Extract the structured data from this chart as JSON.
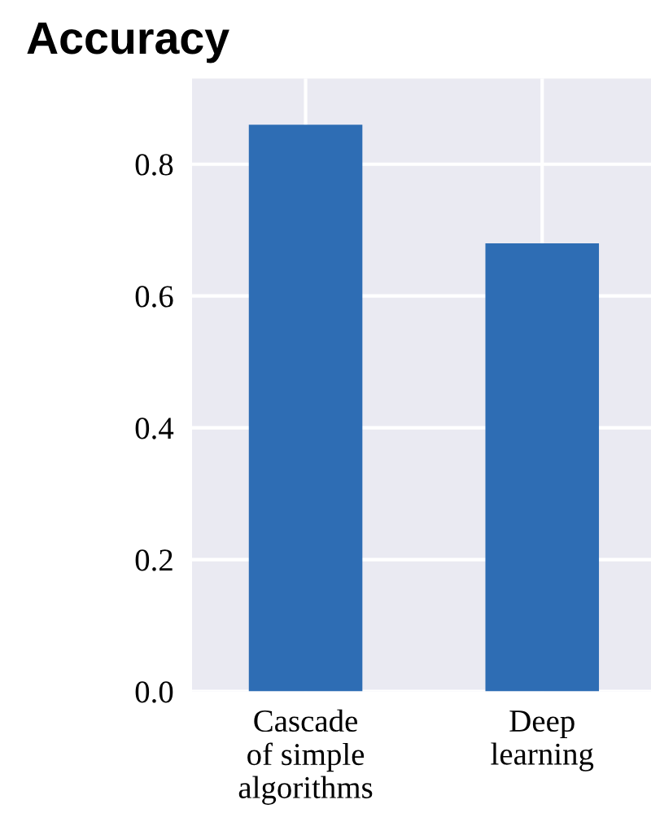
{
  "chart_data": {
    "type": "bar",
    "title": "Accuracy",
    "categories": [
      "Cascade\nof simple\nalgorithms",
      "Deep\nlearning"
    ],
    "values": [
      0.86,
      0.68
    ],
    "color": "#2e6db4",
    "ylim": [
      0,
      0.93
    ],
    "yticks": [
      {
        "value": 0,
        "label": "0.0"
      },
      0.2,
      0.4,
      0.6,
      0.8
    ],
    "grid": true
  }
}
